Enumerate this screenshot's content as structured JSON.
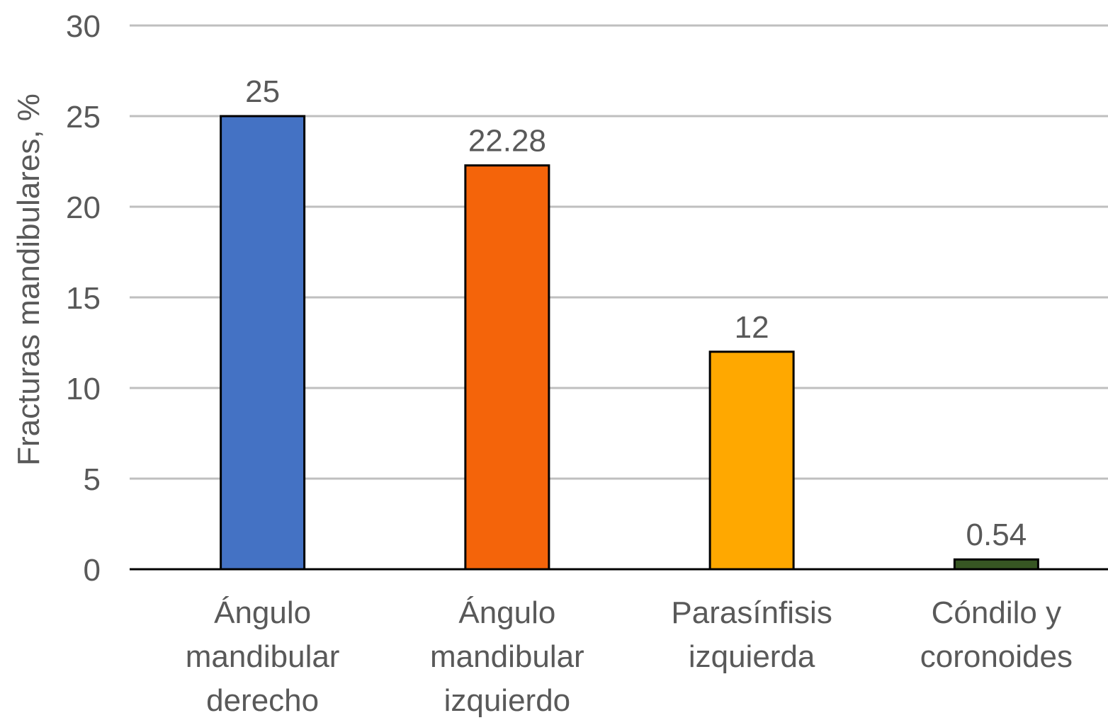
{
  "chart_data": {
    "type": "bar",
    "title": "",
    "xlabel": "",
    "ylabel": "Fracturas mandibulares, %",
    "ylim": [
      0,
      30
    ],
    "yticks": [
      0,
      5,
      10,
      15,
      20,
      25,
      30
    ],
    "grid": true,
    "categories": [
      [
        "Ángulo",
        "mandibular",
        "derecho"
      ],
      [
        "Ángulo",
        "mandibular",
        "izquierdo"
      ],
      [
        "Parasínfisis",
        "izquierda"
      ],
      [
        "Cóndilo y",
        "coronoides"
      ]
    ],
    "values": [
      25,
      22.28,
      12,
      0.54
    ],
    "data_labels": [
      "25",
      "22.28",
      "12",
      "0.54"
    ],
    "colors": [
      "#4472C4",
      "#F4640A",
      "#FFA800",
      "#375623"
    ]
  }
}
